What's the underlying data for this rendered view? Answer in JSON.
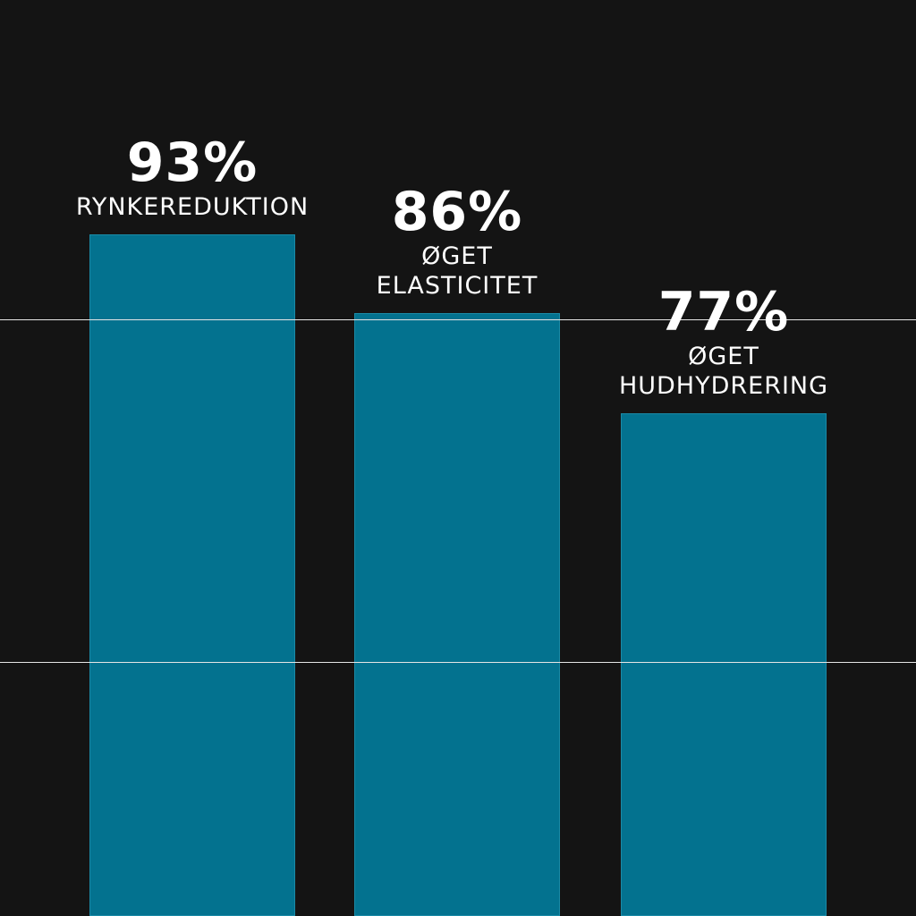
{
  "chart_data": {
    "type": "bar",
    "categories": [
      "RYNKEREDUKTION",
      "ØGET ELASTICITET",
      "ØGET HUDHYDRERING"
    ],
    "category_lines": [
      [
        "RYNKEREDUKTION"
      ],
      [
        "ØGET",
        "ELASTICITET"
      ],
      [
        "ØGET",
        "HUDHYDRERING"
      ]
    ],
    "values": [
      93,
      86,
      77
    ],
    "value_labels": [
      "93%",
      "86%",
      "77%"
    ],
    "title": "",
    "xlabel": "",
    "ylabel": "",
    "unit": "%",
    "grid": "horizontal lines",
    "colors": {
      "background": "#141414",
      "bar": "#03728f",
      "text": "#ffffff",
      "grid": "#e6e6e6"
    }
  }
}
